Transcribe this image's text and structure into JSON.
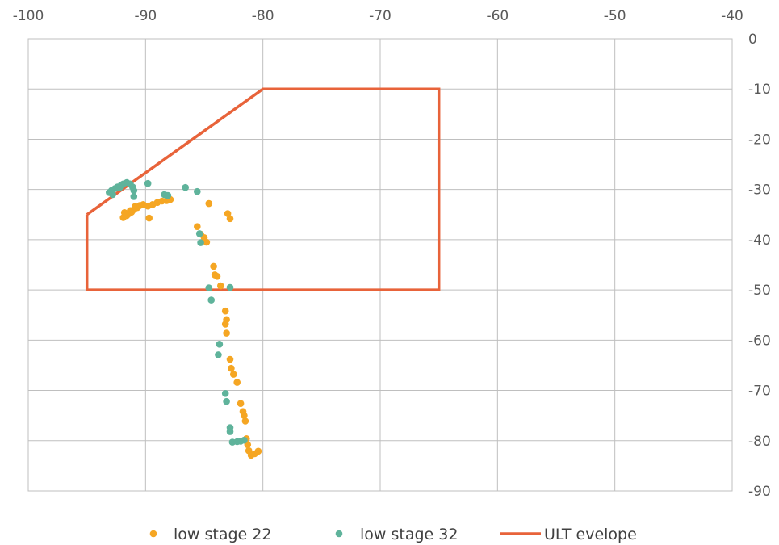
{
  "chart_data": {
    "type": "scatter",
    "title": "",
    "xlabel": "",
    "ylabel": "",
    "xlim": [
      -100,
      -40
    ],
    "ylim": [
      -90,
      0
    ],
    "x_ticks": [
      -100,
      -90,
      -80,
      -70,
      -60,
      -50,
      -40
    ],
    "y_ticks": [
      0,
      -10,
      -20,
      -30,
      -40,
      -50,
      -60,
      -70,
      -80,
      -90
    ],
    "x_axis_position": "top",
    "y_axis_position": "right",
    "grid": true,
    "legend_position": "bottom",
    "series": [
      {
        "name": "low stage 22",
        "kind": "scatter",
        "color": "#f5a623",
        "points": [
          [
            -91.9,
            -35.6
          ],
          [
            -91.6,
            -35.2
          ],
          [
            -91.4,
            -34.8
          ],
          [
            -91.2,
            -34.5
          ],
          [
            -91.0,
            -34.0
          ],
          [
            -90.7,
            -33.6
          ],
          [
            -90.5,
            -33.2
          ],
          [
            -90.2,
            -33.0
          ],
          [
            -89.8,
            -33.3
          ],
          [
            -89.4,
            -33.0
          ],
          [
            -89.0,
            -32.6
          ],
          [
            -88.6,
            -32.3
          ],
          [
            -88.2,
            -32.2
          ],
          [
            -87.9,
            -32.0
          ],
          [
            -91.8,
            -34.6
          ],
          [
            -91.3,
            -34.2
          ],
          [
            -90.9,
            -33.4
          ],
          [
            -89.7,
            -35.7
          ],
          [
            -85.6,
            -37.4
          ],
          [
            -85.3,
            -38.9
          ],
          [
            -85.0,
            -39.6
          ],
          [
            -84.8,
            -40.5
          ],
          [
            -84.6,
            -32.8
          ],
          [
            -83.0,
            -34.8
          ],
          [
            -82.8,
            -35.8
          ],
          [
            -84.2,
            -45.3
          ],
          [
            -84.1,
            -47.0
          ],
          [
            -83.9,
            -47.3
          ],
          [
            -83.6,
            -49.2
          ],
          [
            -83.2,
            -54.2
          ],
          [
            -83.1,
            -55.9
          ],
          [
            -83.2,
            -56.8
          ],
          [
            -83.1,
            -58.6
          ],
          [
            -82.8,
            -63.8
          ],
          [
            -82.7,
            -65.6
          ],
          [
            -82.5,
            -66.8
          ],
          [
            -82.2,
            -68.4
          ],
          [
            -81.9,
            -72.6
          ],
          [
            -81.7,
            -74.2
          ],
          [
            -81.6,
            -75.0
          ],
          [
            -81.5,
            -76.1
          ],
          [
            -81.4,
            -79.6
          ],
          [
            -81.3,
            -80.8
          ],
          [
            -81.2,
            -82.0
          ],
          [
            -81.0,
            -82.9
          ],
          [
            -80.7,
            -82.6
          ],
          [
            -80.4,
            -82.1
          ]
        ]
      },
      {
        "name": "low stage 32",
        "kind": "scatter",
        "color": "#5fb39b",
        "points": [
          [
            -93.1,
            -30.6
          ],
          [
            -92.9,
            -30.2
          ],
          [
            -92.6,
            -29.8
          ],
          [
            -92.4,
            -29.5
          ],
          [
            -92.1,
            -29.2
          ],
          [
            -91.9,
            -28.9
          ],
          [
            -91.6,
            -28.6
          ],
          [
            -91.3,
            -28.9
          ],
          [
            -91.1,
            -29.5
          ],
          [
            -91.0,
            -30.2
          ],
          [
            -91.0,
            -31.4
          ],
          [
            -92.8,
            -31.0
          ],
          [
            -92.2,
            -29.6
          ],
          [
            -89.8,
            -28.8
          ],
          [
            -88.4,
            -31.0
          ],
          [
            -88.1,
            -31.2
          ],
          [
            -86.6,
            -29.6
          ],
          [
            -85.6,
            -30.4
          ],
          [
            -85.4,
            -38.8
          ],
          [
            -85.3,
            -40.6
          ],
          [
            -84.6,
            -49.6
          ],
          [
            -84.4,
            -52.0
          ],
          [
            -82.8,
            -49.5
          ],
          [
            -83.7,
            -60.8
          ],
          [
            -83.8,
            -62.9
          ],
          [
            -83.2,
            -70.6
          ],
          [
            -83.1,
            -72.2
          ],
          [
            -82.8,
            -77.4
          ],
          [
            -82.8,
            -78.2
          ],
          [
            -82.6,
            -80.3
          ],
          [
            -82.2,
            -80.2
          ],
          [
            -81.9,
            -80.1
          ],
          [
            -81.6,
            -79.9
          ]
        ]
      },
      {
        "name": "ULT evelope",
        "kind": "line",
        "color": "#e8633a",
        "points": [
          [
            -95,
            -35
          ],
          [
            -80,
            -10
          ],
          [
            -65,
            -10
          ],
          [
            -65,
            -50
          ],
          [
            -95,
            -50
          ],
          [
            -95,
            -35
          ]
        ]
      }
    ]
  }
}
